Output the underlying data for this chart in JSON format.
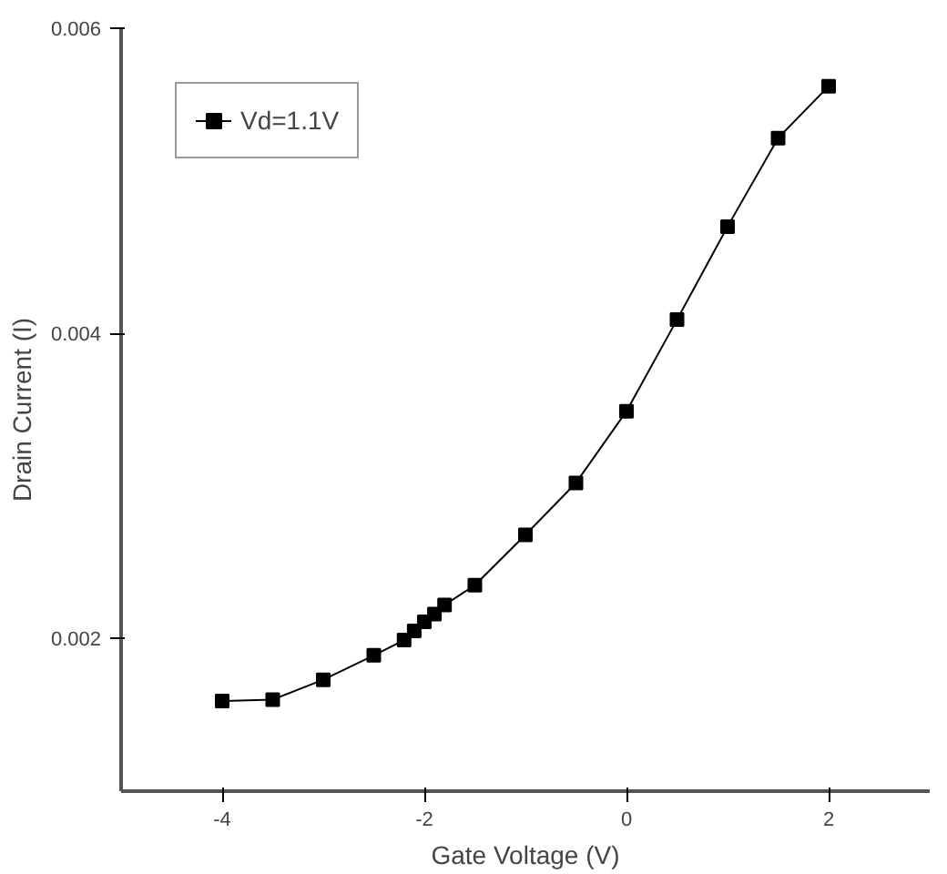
{
  "chart_data": {
    "type": "line",
    "xlabel": "Gate Voltage (V)",
    "ylabel": "Drain Current (I)",
    "x": [
      -4,
      -3.5,
      -3,
      -2.5,
      -2.2,
      -2.1,
      -2.0,
      -1.9,
      -1.8,
      -1.5,
      -1,
      -0.5,
      0,
      0.5,
      1,
      1.5,
      2
    ],
    "series": [
      {
        "name": "Vd=1.1V",
        "color": "#000000",
        "values": [
          0.00159,
          0.0016,
          0.00173,
          0.00189,
          0.00199,
          0.00205,
          0.00211,
          0.00216,
          0.00222,
          0.00235,
          0.00268,
          0.00302,
          0.00349,
          0.00409,
          0.0047,
          0.00528,
          0.00562
        ]
      }
    ],
    "xlim": [
      -5,
      3
    ],
    "ylim": [
      0.001,
      0.006
    ],
    "xticks": [
      -4,
      -2,
      0,
      2
    ],
    "yticks": [
      0.002,
      0.004,
      0.006
    ],
    "marker": "square",
    "line_style": "solid",
    "legend": "top left",
    "grid": false
  }
}
